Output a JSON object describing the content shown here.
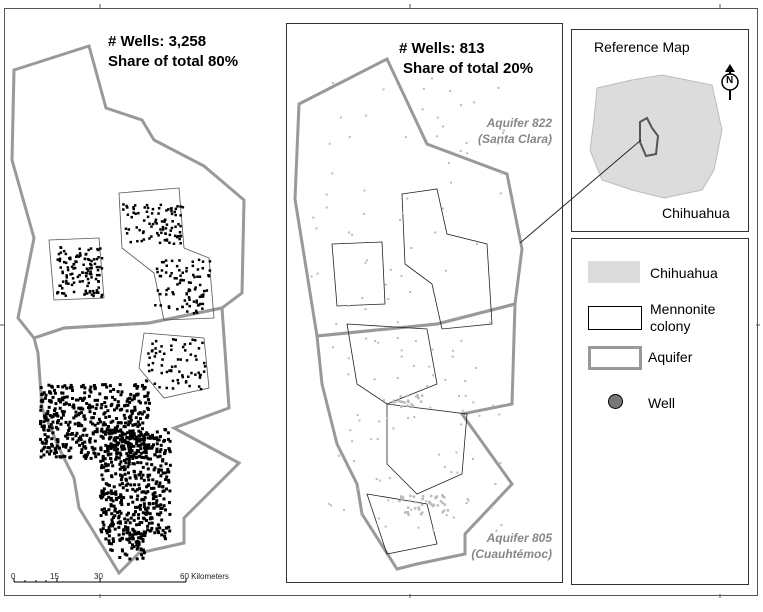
{
  "panels": {
    "left": {
      "wells_label": "# Wells: 3,258",
      "share_label": "Share of total 80%"
    },
    "middle": {
      "wells_label": "# Wells: 813",
      "share_label": "Share of total 20%",
      "aquifer_north_name": "Aquifer 822",
      "aquifer_north_sub": "(Santa Clara)",
      "aquifer_south_name": "Aquifer 805",
      "aquifer_south_sub": "(Cuauhtémoc)"
    }
  },
  "reference_map": {
    "title": "Reference Map",
    "region_label": "Chihuahua",
    "north_arrow": "N"
  },
  "legend": {
    "items": [
      {
        "label": "Chihuahua",
        "symbol": "state-fill"
      },
      {
        "label": "Mennonite colony",
        "symbol": "colony-outline"
      },
      {
        "label": "Aquifer",
        "symbol": "aquifer-outline"
      },
      {
        "label": "Well",
        "symbol": "well-dot"
      }
    ]
  },
  "scale_bar": {
    "ticks": [
      "0",
      "15",
      "30",
      "60 Kilometers"
    ]
  },
  "colors": {
    "state_fill": "#dcdcdc",
    "aquifer_border": "#999999",
    "well_dot_left": "#000000",
    "well_dot_middle": "#bbbbbb",
    "colony_line": "#000000"
  }
}
